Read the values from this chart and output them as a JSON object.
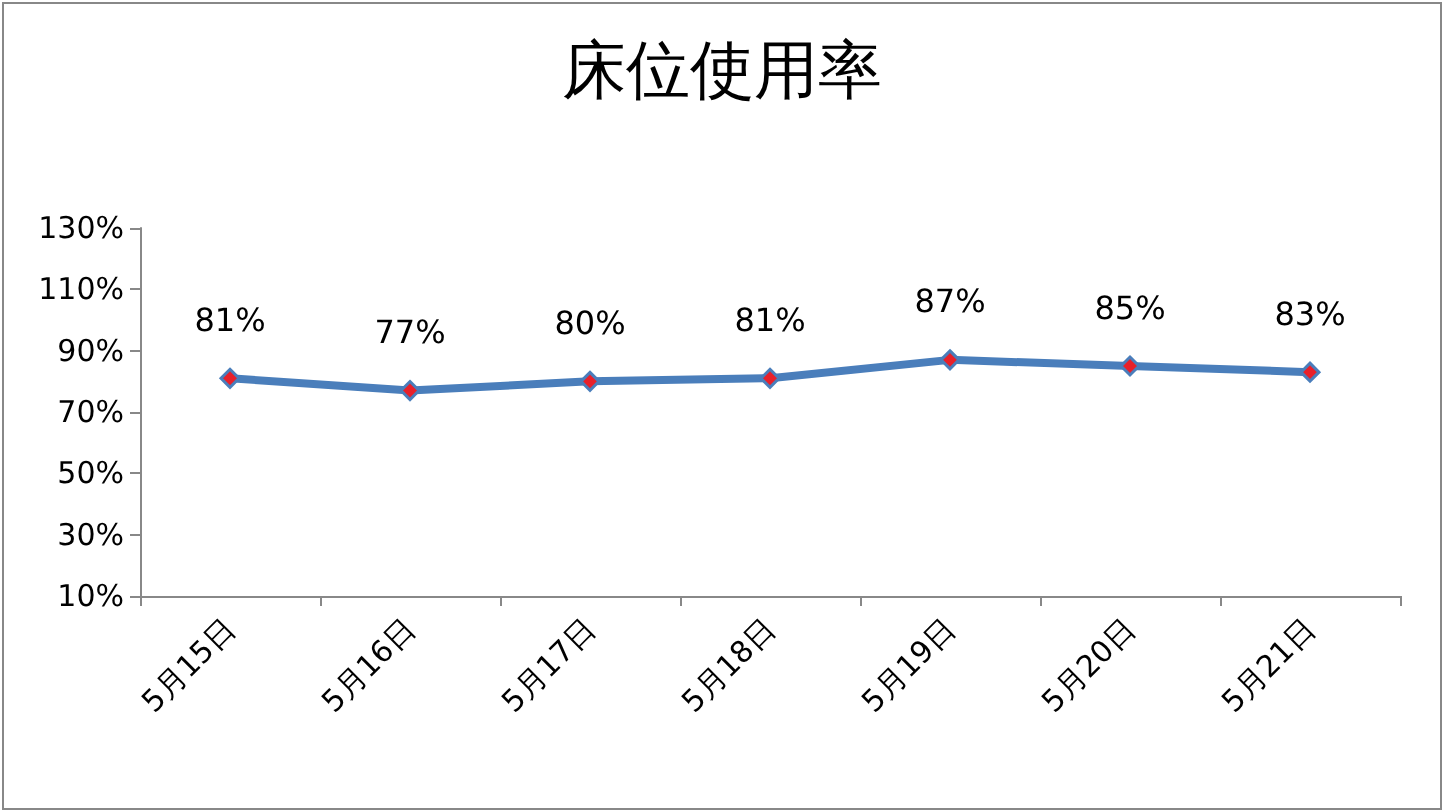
{
  "chart_data": {
    "type": "line",
    "title": "床位使用率",
    "categories": [
      "5月15日",
      "5月16日",
      "5月17日",
      "5月18日",
      "5月19日",
      "5月20日",
      "5月21日"
    ],
    "series": [
      {
        "color": "#4a7ebb",
        "values": [
          81,
          77,
          80,
          81,
          87,
          85,
          83
        ],
        "value_labels": [
          "81%",
          "77%",
          "80%",
          "81%",
          "87%",
          "85%",
          "83%"
        ]
      }
    ],
    "ylim": [
      10,
      130
    ],
    "yticks": [
      {
        "value": 10,
        "label": "10%"
      },
      {
        "value": 30,
        "label": "30%"
      },
      {
        "value": 50,
        "label": "50%"
      },
      {
        "value": 70,
        "label": "70%"
      },
      {
        "value": 90,
        "label": "90%"
      },
      {
        "value": 110,
        "label": "110%"
      },
      {
        "value": 130,
        "label": "130%"
      }
    ],
    "grid": false,
    "marker": "diamond",
    "line_style": "solid"
  }
}
